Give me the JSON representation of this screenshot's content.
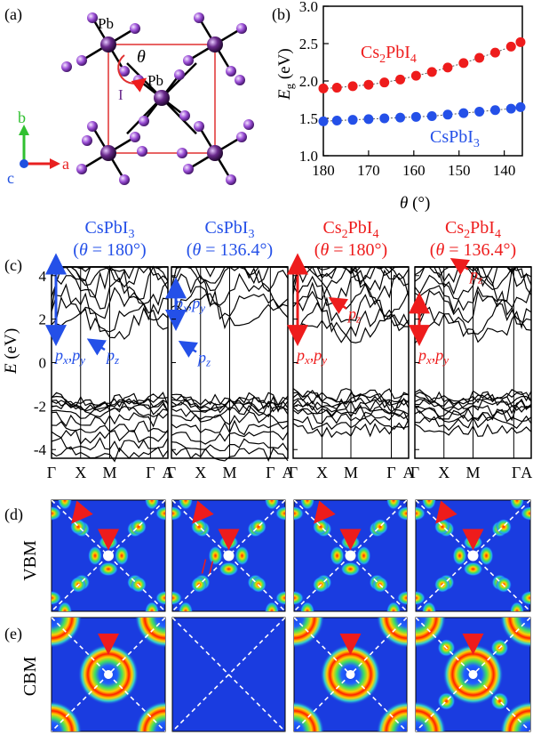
{
  "panels": {
    "a": "(a)",
    "b": "(b)",
    "c": "(c)",
    "d": "(d)",
    "e": "(e)"
  },
  "structure": {
    "atom_pb": "Pb",
    "atom_pb_center": "Pb",
    "atom_i": "I",
    "angle": "θ",
    "axis_a": "a",
    "axis_b": "b",
    "axis_c": "c",
    "colors": {
      "pb": "#6a2a8c",
      "i": "#9b4fd6",
      "cell": "#e03030",
      "axis_a": "#e82020",
      "axis_b": "#30c030",
      "axis_c": "#2050e0"
    }
  },
  "chart_data": {
    "type": "scatter",
    "ylabel_main": "E",
    "ylabel_sub": "g",
    "ylabel_unit": " (eV)",
    "xlabel_main": "θ",
    "xlabel_unit": " (°)",
    "x_reversed": true,
    "xlim": [
      180,
      136
    ],
    "ylim": [
      1.0,
      3.0
    ],
    "xticks": [
      180,
      170,
      160,
      150,
      140
    ],
    "yticks": [
      "1.0",
      "1.5",
      "2.0",
      "2.5",
      "3.0"
    ],
    "series": [
      {
        "name_main": "Cs",
        "name_sub1": "2",
        "name_mid": "PbI",
        "name_sub2": "4",
        "color": "#ee1c1c",
        "x": [
          180,
          177,
          173.5,
          170,
          166.5,
          163,
          159.5,
          156,
          152.5,
          149,
          145.5,
          142,
          138.5,
          136.4
        ],
        "y": [
          1.9,
          1.91,
          1.93,
          1.95,
          1.98,
          2.02,
          2.07,
          2.12,
          2.18,
          2.24,
          2.31,
          2.38,
          2.46,
          2.52
        ]
      },
      {
        "name_main": "CsPbI",
        "name_sub1": "3",
        "name_mid": "",
        "name_sub2": "",
        "color": "#2450e8",
        "x": [
          180,
          177,
          173.5,
          170,
          166.5,
          163,
          159.5,
          156,
          152.5,
          149,
          145.5,
          142,
          138.5,
          136.4
        ],
        "y": [
          1.46,
          1.47,
          1.48,
          1.49,
          1.5,
          1.51,
          1.52,
          1.53,
          1.55,
          1.57,
          1.59,
          1.61,
          1.63,
          1.65
        ]
      }
    ]
  },
  "bands": {
    "ylabel_main": "E",
    "ylabel_unit": " (eV)",
    "yticks": [
      "4",
      "2",
      "0",
      "-2",
      "-4"
    ],
    "kpoints": [
      "Γ",
      "X",
      "M",
      "Γ",
      "A"
    ],
    "kpoints_last": [
      "Γ",
      "X",
      "M",
      "ΓA"
    ],
    "headers": [
      {
        "formula": "CsPbI",
        "sub": "3",
        "sub2": "",
        "angle": "θ",
        "value": " = 180°",
        "color": "#2450e8"
      },
      {
        "formula": "CsPbI",
        "sub": "3",
        "sub2": "",
        "angle": "θ",
        "value": " = 136.4°",
        "color": "#2450e8"
      },
      {
        "formula": "Cs",
        "sub": "2",
        "formula2": "PbI",
        "sub2": "4",
        "angle": "θ",
        "value": " = 180°",
        "color": "#ee1c1c"
      },
      {
        "formula": "Cs",
        "sub": "2",
        "formula2": "PbI",
        "sub2": "4",
        "angle": "θ",
        "value": " = 136.4°",
        "color": "#ee1c1c"
      }
    ],
    "annotations": [
      {
        "text": "p",
        "sub": "x",
        "text2": ",p",
        "sub2": "y",
        "text3": "p",
        "sub3": "z"
      },
      {
        "text": "p",
        "sub": "x",
        "text2": ",p",
        "sub2": "y",
        "text3": "p",
        "sub3": "z"
      },
      {
        "text": "p",
        "sub": "x",
        "text2": ",p",
        "sub2": "y",
        "text3": "p",
        "sub3": "z"
      },
      {
        "text": "p",
        "sub": "x",
        "text2": ",p",
        "sub2": "y",
        "text3": "p",
        "sub3": "z"
      }
    ]
  },
  "rows": {
    "vbm": "VBM",
    "cbm": "CBM"
  }
}
